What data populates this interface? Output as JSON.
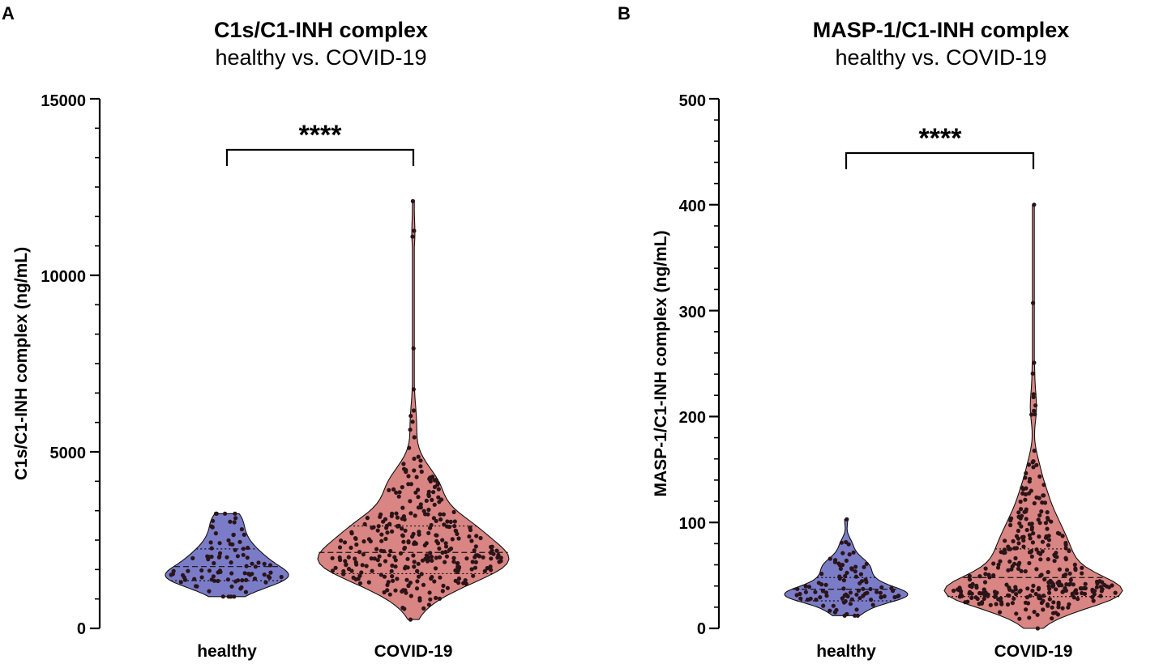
{
  "chart_data": [
    {
      "panel": "A",
      "type": "violin",
      "title": "C1s/C1-INH complex",
      "subtitle": "healthy vs. COVID-19",
      "ylabel": "C1s/C1-INH complex (ng/mL)",
      "xlabel": "",
      "ylim": [
        0,
        15000
      ],
      "yticks": [
        0,
        5000,
        10000,
        15000
      ],
      "ytick_labels": [
        "0",
        "5000",
        "10000",
        "15000"
      ],
      "categories": [
        "healthy",
        "COVID-19"
      ],
      "significance": "****",
      "series": [
        {
          "name": "healthy",
          "color": "#7b7cc8",
          "min": 900,
          "q1": 1350,
          "median": 1750,
          "q3": 2250,
          "max": 3250,
          "mode": 1600,
          "n": 90
        },
        {
          "name": "COVID-19",
          "color": "#d98583",
          "min": 250,
          "q1": 1550,
          "median": 2150,
          "q3": 2900,
          "max": 12100,
          "mode": 2100,
          "n": 320
        }
      ]
    },
    {
      "panel": "B",
      "type": "violin",
      "title": "MASP-1/C1-INH complex",
      "subtitle": "healthy vs. COVID-19",
      "ylabel": "MASP-1/C1-INH complex (ng/mL)",
      "xlabel": "",
      "ylim": [
        0,
        500
      ],
      "yticks": [
        0,
        100,
        200,
        300,
        400,
        500
      ],
      "ytick_labels": [
        "0",
        "100",
        "200",
        "300",
        "400",
        "500"
      ],
      "categories": [
        "healthy",
        "COVID-19"
      ],
      "significance": "****",
      "series": [
        {
          "name": "healthy",
          "color": "#7b7cc8",
          "min": 12,
          "q1": 26,
          "median": 37,
          "q3": 48,
          "max": 103,
          "mode": 36,
          "n": 90
        },
        {
          "name": "COVID-19",
          "color": "#d98583",
          "min": 0,
          "q1": 30,
          "median": 48,
          "q3": 75,
          "max": 400,
          "mode": 42,
          "n": 320
        }
      ]
    }
  ]
}
